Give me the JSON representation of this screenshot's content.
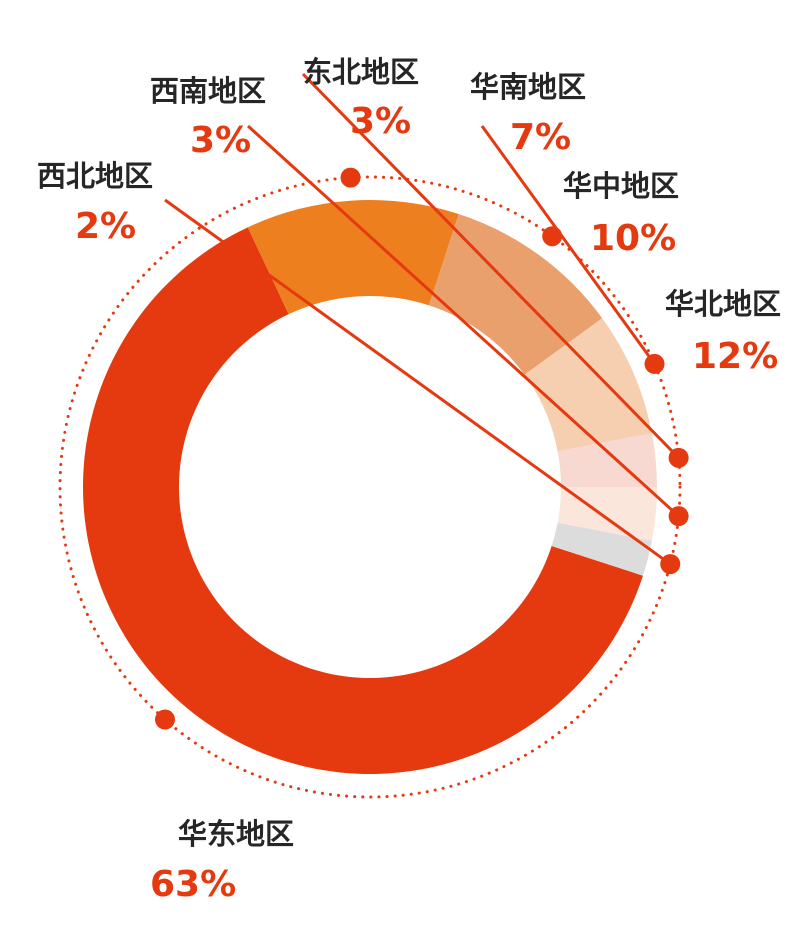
{
  "chart_data": {
    "type": "pie",
    "slices": [
      {
        "label": "华东地区",
        "value": 63,
        "value_label": "63%",
        "color": "#E5390F"
      },
      {
        "label": "华北地区",
        "value": 12,
        "value_label": "12%",
        "color": "#EE7F1F"
      },
      {
        "label": "华中地区",
        "value": 10,
        "value_label": "10%",
        "color": "#EAA06D"
      },
      {
        "label": "华南地区",
        "value": 7,
        "value_label": "7%",
        "color": "#F6CFB1"
      },
      {
        "label": "东北地区",
        "value": 3,
        "value_label": "3%",
        "color": "#F8D9D1"
      },
      {
        "label": "西南地区",
        "value": 3,
        "value_label": "3%",
        "color": "#FBE6DC"
      },
      {
        "label": "西北地区",
        "value": 2,
        "value_label": "2%",
        "color": "#DCDCDC"
      }
    ],
    "label_color": "#262626",
    "value_color": "#E5390F",
    "accent": "#E5390F"
  }
}
